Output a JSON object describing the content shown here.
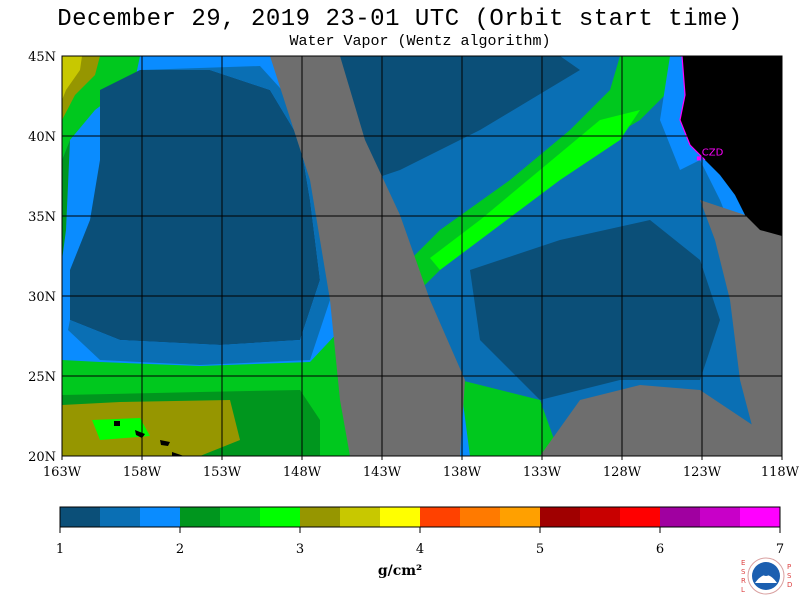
{
  "title": "December 29, 2019  23-01 UTC  (Orbit start time)",
  "subtitle": "Water Vapor (Wentz algorithm)",
  "map": {
    "lat_labels": [
      "45N",
      "40N",
      "35N",
      "30N",
      "25N",
      "20N"
    ],
    "lon_labels": [
      "163W",
      "158W",
      "153W",
      "148W",
      "143W",
      "138W",
      "133W",
      "128W",
      "123W",
      "118W"
    ],
    "lat_range": [
      20,
      45
    ],
    "lon_range": [
      -163,
      -118
    ],
    "station_label": "CZD",
    "station_lat": 38.6,
    "station_lon": -123.2,
    "colors": {
      "land": "#000000",
      "no_data": "#6e6e6e",
      "grid": "#000000",
      "station": "#ff00ff"
    }
  },
  "colorbar": {
    "unit_label": "g/cm²",
    "tick_labels": [
      "1",
      "2",
      "3",
      "4",
      "5",
      "6",
      "7"
    ],
    "range": [
      1,
      7
    ],
    "colors": [
      "#0b4f78",
      "#0a6fb4",
      "#0a8cff",
      "#00961e",
      "#00c81e",
      "#00ff00",
      "#969600",
      "#c8c800",
      "#ffff00",
      "#ff4100",
      "#ff7a00",
      "#ffa000",
      "#a00000",
      "#c80000",
      "#ff0000",
      "#a000a0",
      "#c800c8",
      "#ff00ff"
    ]
  },
  "logo": {
    "left_letters": "ESRL",
    "right_letters": "PSD",
    "name": "NOAA"
  }
}
